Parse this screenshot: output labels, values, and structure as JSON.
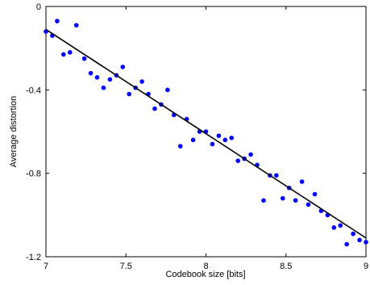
{
  "chart_data": {
    "type": "scatter",
    "xlabel": "Codebook size  [bits]",
    "ylabel": "Average distortion",
    "xlim": [
      7,
      9
    ],
    "ylim": [
      -1.2,
      0
    ],
    "grid": false,
    "x_ticks": [
      7,
      7.5,
      8,
      8.5,
      9
    ],
    "x_tick_labels": [
      "7",
      "7.5",
      "8",
      "8.5",
      "9"
    ],
    "y_ticks": [
      0,
      -0.4,
      -0.8,
      -1.2
    ],
    "y_tick_labels": [
      "0",
      "-0.4",
      "-0.8",
      "-1.2"
    ],
    "series": [
      {
        "kind": "points",
        "color": "#0000ff",
        "x": [
          7.0,
          7.04,
          7.07,
          7.11,
          7.15,
          7.19,
          7.24,
          7.28,
          7.32,
          7.36,
          7.4,
          7.44,
          7.48,
          7.52,
          7.56,
          7.6,
          7.64,
          7.68,
          7.72,
          7.76,
          7.8,
          7.84,
          7.88,
          7.92,
          7.96,
          8.0,
          8.04,
          8.08,
          8.12,
          8.16,
          8.2,
          8.24,
          8.28,
          8.32,
          8.36,
          8.4,
          8.44,
          8.48,
          8.52,
          8.56,
          8.6,
          8.64,
          8.68,
          8.72,
          8.76,
          8.8,
          8.84,
          8.88,
          8.92,
          8.96,
          9.0
        ],
        "y": [
          -0.12,
          -0.14,
          -0.07,
          -0.23,
          -0.22,
          -0.09,
          -0.25,
          -0.32,
          -0.34,
          -0.39,
          -0.35,
          -0.33,
          -0.29,
          -0.42,
          -0.39,
          -0.36,
          -0.42,
          -0.49,
          -0.47,
          -0.4,
          -0.52,
          -0.67,
          -0.54,
          -0.64,
          -0.6,
          -0.6,
          -0.66,
          -0.62,
          -0.64,
          -0.63,
          -0.74,
          -0.73,
          -0.71,
          -0.76,
          -0.93,
          -0.81,
          -0.81,
          -0.92,
          -0.87,
          -0.93,
          -0.84,
          -0.95,
          -0.9,
          -0.98,
          -1.0,
          -1.06,
          -1.05,
          -1.14,
          -1.09,
          -1.12,
          -1.13
        ]
      },
      {
        "kind": "line",
        "color": "#000000",
        "x": [
          7,
          9
        ],
        "y": [
          -0.11,
          -1.11
        ]
      }
    ]
  }
}
